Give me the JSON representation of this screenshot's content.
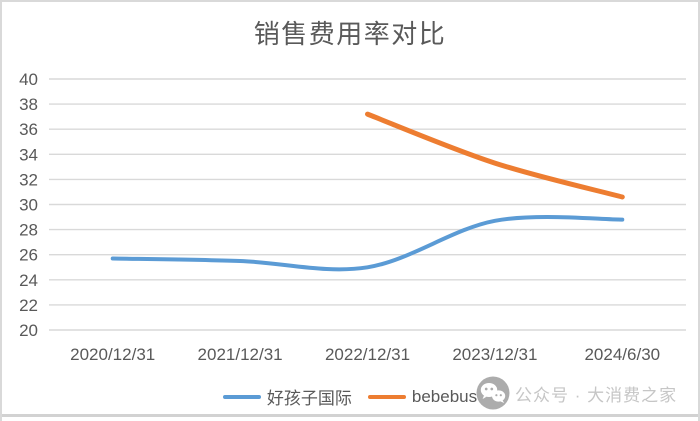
{
  "chart_data": {
    "type": "line",
    "title": "销售费用率对比",
    "categories": [
      "2020/12/31",
      "2021/12/31",
      "2022/12/31",
      "2023/12/31",
      "2024/6/30"
    ],
    "series": [
      {
        "name": "好孩子国际",
        "color": "#5B9BD5",
        "values": [
          25.7,
          25.5,
          25.0,
          28.7,
          28.8
        ]
      },
      {
        "name": "bebebus",
        "color": "#ED7D31",
        "values": [
          null,
          null,
          37.2,
          33.3,
          30.6
        ]
      }
    ],
    "xlabel": "",
    "ylabel": "",
    "ylim": [
      20,
      40
    ],
    "ytick_step": 2,
    "grid": true,
    "smoothed": true,
    "legend_position": "bottom"
  },
  "watermark": {
    "icon": "wechat-icon",
    "text": "公众号 · 大消费之家"
  },
  "colors": {
    "grid": "#D9D9D9",
    "axis_text": "#595959",
    "title_text": "#595959",
    "legend_text": "#595959",
    "watermark_text": "#C6C6C6",
    "watermark_icon": "#ACACAC",
    "frame_border": "#D9D9D9",
    "series_blue": "#5B9BD5",
    "series_orange": "#ED7D31"
  }
}
